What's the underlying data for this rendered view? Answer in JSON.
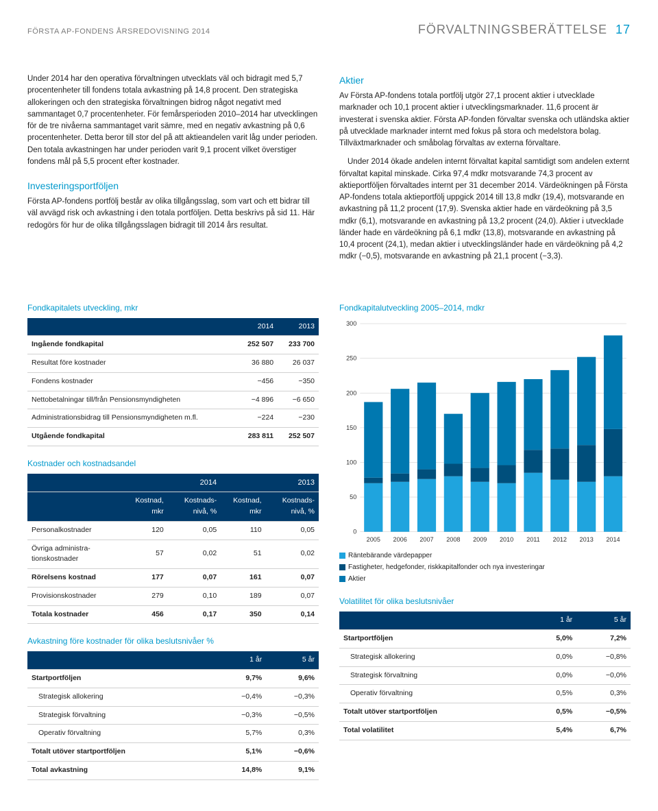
{
  "header": {
    "left": "FÖRSTA AP-FONDENS ÅRSREDOVISNING 2014",
    "right": "FÖRVALTNINGSBERÄTTELSE",
    "page_number": "17"
  },
  "colors": {
    "accent": "#0099cc",
    "deep_blue": "#003a6a",
    "light_blue": "#1fa4de",
    "mid_blue": "#0078b0",
    "dark_blue": "#004f7c",
    "grid": "#d0d0d0",
    "text": "#222222"
  },
  "left_col": {
    "p1": "Under 2014 har den operativa förvaltningen utvecklats väl och bidragit med 5,7 procentenheter till fondens totala avkastning på 14,8 procent. Den strategiska allokeringen och den strategiska förvaltningen bidrog något negativt med sammantaget 0,7 procentenheter. För femårsperioden 2010–2014 har utvecklingen för de tre nivåerna sammantaget varit sämre, med en negativ avkastning på 0,6 procentenheter. Detta beror till stor del på att aktieandelen varit låg under perioden. Den totala avkastningen har under perioden varit 9,1 procent vilket överstiger fondens mål på 5,5 procent efter kostnader.",
    "h_invest": "Investeringsportföljen",
    "p_invest": "Första AP-fondens portfölj består av olika tillgångsslag, som vart och ett bidrar till väl avvägd risk och avkastning i den totala portföljen. Detta beskrivs på sid 11. Här redogörs för hur de olika tillgångsslagen bidragit till 2014 års resultat."
  },
  "right_col": {
    "h_aktier": "Aktier",
    "p_aktier1": "Av Första AP-fondens totala portfölj utgör 27,1 procent aktier i utvecklade marknader och 10,1 procent aktier i utvecklingsmarknader. 11,6 procent är investerat i svenska aktier. Första AP-fonden förvaltar svenska och utländska aktier på utvecklade marknader internt med fokus på stora och medelstora bolag. Tillväxtmarknader och småbolag förvaltas av externa förvaltare.",
    "p_aktier2": "Under 2014 ökade andelen internt förvaltat kapital samtidigt som andelen externt förvaltat kapital minskade. Cirka 97,4 mdkr motsvarande 74,3 procent av aktieportföljen förvaltades internt per 31 december 2014. Värdeökningen på Första AP-fondens totala aktieportfölj uppgick 2014 till 13,8 mdkr (19,4), motsvarande en avkastning på 11,2 procent (17,9). Svenska aktier hade en värdeökning på 3,5 mdkr (6,1), motsvarande en avkastning på 13,2 procent (24,0). Aktier i utvecklade länder hade en värdeökning på 6,1 mdkr (13,8), motsvarande en avkastning på 10,4 procent (24,1), medan aktier i utvecklingsländer hade en värdeökning på 4,2 mdkr (−0,5), motsvarande en avkastning på 21,1 procent (−3,3)."
  },
  "table_fondkapital": {
    "title": "Fondkapitalets utveckling, mkr",
    "headers": [
      "",
      "2014",
      "2013"
    ],
    "rows": [
      {
        "label": "Ingående fondkapital",
        "c1": "252 507",
        "c2": "233 700",
        "bold": true
      },
      {
        "label": "Resultat före kostnader",
        "c1": "36 880",
        "c2": "26 037"
      },
      {
        "label": "Fondens kostnader",
        "c1": "−456",
        "c2": "−350"
      },
      {
        "label": "Nettobetalningar till/från Pensions­myndigheten",
        "c1": "−4 896",
        "c2": "−6 650"
      },
      {
        "label": "Administrationsbidrag till Pensions­myndigheten m.fl.",
        "c1": "−224",
        "c2": "−230"
      },
      {
        "label": "Utgående fondkapital",
        "c1": "283 811",
        "c2": "252 507",
        "bold": true
      }
    ]
  },
  "table_kostnader": {
    "title": "Kostnader och kostnadsandel",
    "year_headers": [
      "",
      "2014",
      "2013"
    ],
    "sub_headers": [
      "",
      "Kostnad, mkr",
      "Kostnads­nivå, %",
      "Kostnad, mkr",
      "Kostnads­nivå, %"
    ],
    "rows": [
      {
        "label": "Personalkostnader",
        "c1": "120",
        "c2": "0,05",
        "c3": "110",
        "c4": "0,05"
      },
      {
        "label": "Övriga administra­tionskostnader",
        "c1": "57",
        "c2": "0,02",
        "c3": "51",
        "c4": "0,02"
      },
      {
        "label": "Rörelsens kostnad",
        "c1": "177",
        "c2": "0,07",
        "c3": "161",
        "c4": "0,07",
        "bold": true
      },
      {
        "label": "Provisionskostnader",
        "c1": "279",
        "c2": "0,10",
        "c3": "189",
        "c4": "0,07"
      },
      {
        "label": "Totala kostnader",
        "c1": "456",
        "c2": "0,17",
        "c3": "350",
        "c4": "0,14",
        "bold": true
      }
    ]
  },
  "table_avkastning": {
    "title": "Avkastning före kostnader för olika beslutsnivåer %",
    "headers": [
      "",
      "1 år",
      "5 år"
    ],
    "rows": [
      {
        "label": "Startportföljen",
        "c1": "9,7%",
        "c2": "9,6%",
        "bold": true
      },
      {
        "label": "Strategisk allokering",
        "c1": "−0,4%",
        "c2": "−0,3%",
        "indent": true
      },
      {
        "label": "Strategisk förvaltning",
        "c1": "−0,3%",
        "c2": "−0,5%",
        "indent": true
      },
      {
        "label": "Operativ förvaltning",
        "c1": "5,7%",
        "c2": "0,3%",
        "indent": true
      },
      {
        "label": "Totalt utöver startportföljen",
        "c1": "5,1%",
        "c2": "−0,6%",
        "bold": true
      },
      {
        "label": "Total avkastning",
        "c1": "14,8%",
        "c2": "9,1%",
        "bold": true
      }
    ]
  },
  "chart": {
    "title": "Fondkapitalutveckling 2005–2014, mdkr",
    "type": "stacked_bar",
    "ylim": [
      0,
      300
    ],
    "ytick_step": 50,
    "categories": [
      "2005",
      "2006",
      "2007",
      "2008",
      "2009",
      "2010",
      "2011",
      "2012",
      "2013",
      "2014"
    ],
    "series": [
      {
        "name": "Räntebärande värdepapper",
        "color": "#1fa4de",
        "values": [
          70,
          72,
          76,
          80,
          72,
          70,
          85,
          75,
          72,
          80
        ]
      },
      {
        "name": "Fastigheter, hedgefonder, riskkapitalfonder och nya investeringar",
        "color": "#004f7c",
        "values": [
          8,
          12,
          14,
          18,
          20,
          26,
          33,
          45,
          53,
          68
        ]
      },
      {
        "name": "Aktier",
        "color": "#0078b0",
        "values": [
          109,
          122,
          125,
          72,
          108,
          120,
          102,
          113,
          127,
          135
        ]
      }
    ],
    "bar_gap": 0.3,
    "background": "#ffffff",
    "grid_color": "#d0d0d0",
    "label_fontsize": 9
  },
  "table_volatilitet": {
    "title": "Volatilitet för olika beslutsnivåer",
    "headers": [
      "",
      "1 år",
      "5 år"
    ],
    "rows": [
      {
        "label": "Startportföljen",
        "c1": "5,0%",
        "c2": "7,2%",
        "bold": true
      },
      {
        "label": "Strategisk allokering",
        "c1": "0,0%",
        "c2": "−0,8%",
        "indent": true
      },
      {
        "label": "Strategisk förvaltning",
        "c1": "0,0%",
        "c2": "−0,0%",
        "indent": true
      },
      {
        "label": "Operativ förvaltning",
        "c1": "0,5%",
        "c2": "0,3%",
        "indent": true
      },
      {
        "label": "Totalt utöver startportföljen",
        "c1": "0,5%",
        "c2": "−0,5%",
        "bold": true
      },
      {
        "label": "Total volatilitet",
        "c1": "5,4%",
        "c2": "6,7%",
        "bold": true
      }
    ]
  }
}
